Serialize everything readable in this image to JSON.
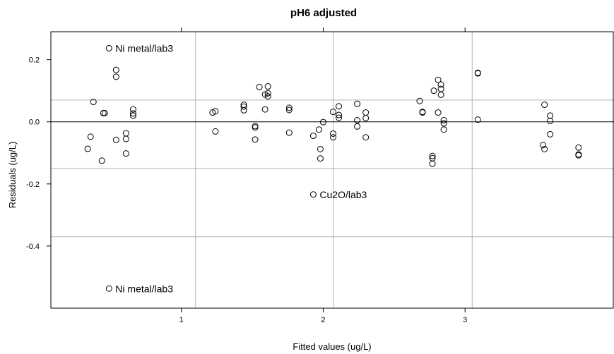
{
  "chart_data": {
    "type": "scatter",
    "title": "pH6 adjusted",
    "xlabel": "Fitted values (ug/L)",
    "ylabel": "Residuals (ug/L)",
    "xlim": [
      0.08,
      4.05
    ],
    "ylim": [
      -0.6,
      0.29
    ],
    "x_ticks": [
      1,
      2,
      3
    ],
    "x_tick_labels": [
      "1",
      "2",
      "3"
    ],
    "y_ticks": [
      -0.4,
      -0.2,
      0.0,
      0.2
    ],
    "y_tick_labels": [
      "-0.4",
      "-0.2",
      "0.0",
      "0.2"
    ],
    "vertical_reference_lines": [
      1.1,
      2.07,
      3.05
    ],
    "horizontal_reference_lines": [
      0.07,
      -0.15,
      -0.37
    ],
    "zero_line": 0.0,
    "grid": false,
    "marker": "open-circle",
    "point_color": "#000000",
    "reference_line_color": "#b3b3b3",
    "points": [
      {
        "x": 0.34,
        "y": -0.087
      },
      {
        "x": 0.36,
        "y": -0.048
      },
      {
        "x": 0.38,
        "y": 0.064
      },
      {
        "x": 0.44,
        "y": -0.125
      },
      {
        "x": 0.45,
        "y": 0.028
      },
      {
        "x": 0.46,
        "y": 0.028
      },
      {
        "x": 0.49,
        "y": 0.237
      },
      {
        "x": 0.49,
        "y": -0.537
      },
      {
        "x": 0.54,
        "y": 0.167
      },
      {
        "x": 0.54,
        "y": 0.145
      },
      {
        "x": 0.54,
        "y": -0.058
      },
      {
        "x": 0.61,
        "y": -0.037
      },
      {
        "x": 0.61,
        "y": -0.055
      },
      {
        "x": 0.61,
        "y": -0.102
      },
      {
        "x": 0.66,
        "y": 0.04
      },
      {
        "x": 0.66,
        "y": 0.027
      },
      {
        "x": 0.66,
        "y": 0.02
      },
      {
        "x": 1.22,
        "y": 0.03
      },
      {
        "x": 1.24,
        "y": 0.034
      },
      {
        "x": 1.24,
        "y": -0.031
      },
      {
        "x": 1.44,
        "y": 0.055
      },
      {
        "x": 1.44,
        "y": 0.049
      },
      {
        "x": 1.44,
        "y": 0.037
      },
      {
        "x": 1.52,
        "y": -0.014
      },
      {
        "x": 1.52,
        "y": -0.018
      },
      {
        "x": 1.52,
        "y": -0.057
      },
      {
        "x": 1.55,
        "y": 0.112
      },
      {
        "x": 1.59,
        "y": 0.088
      },
      {
        "x": 1.59,
        "y": 0.04
      },
      {
        "x": 1.61,
        "y": 0.114
      },
      {
        "x": 1.61,
        "y": 0.092
      },
      {
        "x": 1.61,
        "y": 0.082
      },
      {
        "x": 1.76,
        "y": 0.045
      },
      {
        "x": 1.76,
        "y": 0.038
      },
      {
        "x": 1.76,
        "y": -0.035
      },
      {
        "x": 1.93,
        "y": -0.045
      },
      {
        "x": 1.93,
        "y": -0.234
      },
      {
        "x": 1.97,
        "y": -0.025
      },
      {
        "x": 1.98,
        "y": -0.088
      },
      {
        "x": 1.98,
        "y": -0.118
      },
      {
        "x": 2.0,
        "y": -0.001
      },
      {
        "x": 2.07,
        "y": 0.032
      },
      {
        "x": 2.07,
        "y": -0.038
      },
      {
        "x": 2.07,
        "y": -0.05
      },
      {
        "x": 2.11,
        "y": 0.05
      },
      {
        "x": 2.11,
        "y": 0.022
      },
      {
        "x": 2.11,
        "y": 0.013
      },
      {
        "x": 2.24,
        "y": 0.058
      },
      {
        "x": 2.24,
        "y": 0.005
      },
      {
        "x": 2.24,
        "y": -0.015
      },
      {
        "x": 2.3,
        "y": 0.03
      },
      {
        "x": 2.3,
        "y": 0.012
      },
      {
        "x": 2.3,
        "y": -0.05
      },
      {
        "x": 2.68,
        "y": 0.067
      },
      {
        "x": 2.7,
        "y": 0.032
      },
      {
        "x": 2.7,
        "y": 0.03
      },
      {
        "x": 2.77,
        "y": -0.11
      },
      {
        "x": 2.77,
        "y": -0.117
      },
      {
        "x": 2.77,
        "y": -0.135
      },
      {
        "x": 2.78,
        "y": 0.1
      },
      {
        "x": 2.81,
        "y": 0.135
      },
      {
        "x": 2.81,
        "y": 0.03
      },
      {
        "x": 2.83,
        "y": 0.12
      },
      {
        "x": 2.83,
        "y": 0.106
      },
      {
        "x": 2.83,
        "y": 0.087
      },
      {
        "x": 2.85,
        "y": 0.005
      },
      {
        "x": 2.85,
        "y": -0.005
      },
      {
        "x": 2.85,
        "y": -0.025
      },
      {
        "x": 3.09,
        "y": 0.158
      },
      {
        "x": 3.09,
        "y": 0.156
      },
      {
        "x": 3.09,
        "y": 0.007
      },
      {
        "x": 3.55,
        "y": -0.075
      },
      {
        "x": 3.56,
        "y": 0.055
      },
      {
        "x": 3.56,
        "y": -0.088
      },
      {
        "x": 3.6,
        "y": 0.02
      },
      {
        "x": 3.6,
        "y": 0.003
      },
      {
        "x": 3.6,
        "y": -0.04
      },
      {
        "x": 3.8,
        "y": -0.083
      },
      {
        "x": 3.8,
        "y": -0.105
      },
      {
        "x": 3.8,
        "y": -0.108
      }
    ],
    "annotations": [
      {
        "text": "Ni metal/lab3",
        "x": 0.49,
        "y": 0.237
      },
      {
        "text": "Cu2O/lab3",
        "x": 1.93,
        "y": -0.234
      },
      {
        "text": "Ni metal/lab3",
        "x": 0.49,
        "y": -0.537
      }
    ]
  }
}
